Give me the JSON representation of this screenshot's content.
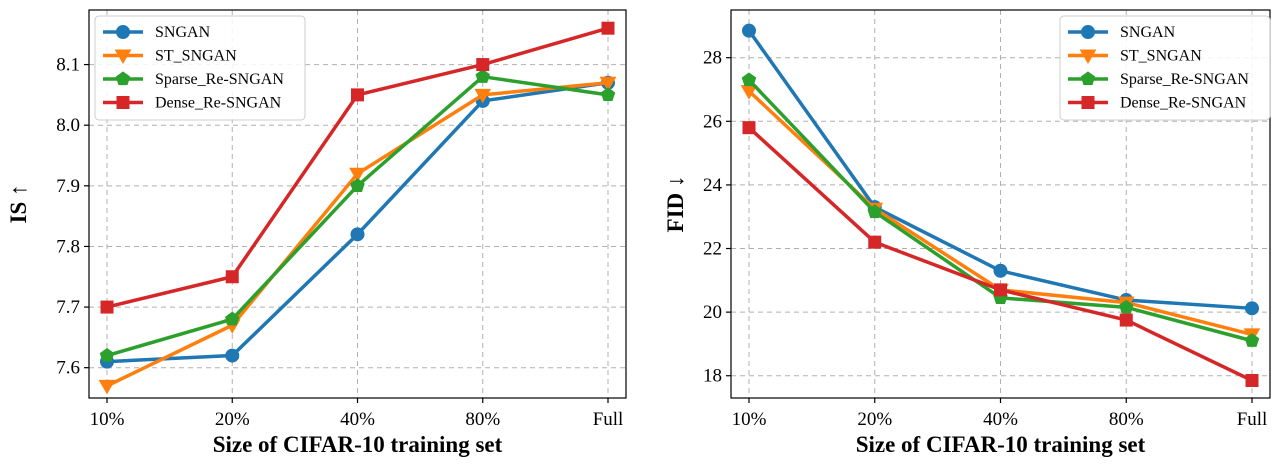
{
  "chart_data": [
    {
      "type": "line",
      "categories": [
        "10%",
        "20%",
        "40%",
        "80%",
        "Full"
      ],
      "xlabel": "Size of CIFAR-10 training set",
      "ylabel": "IS ↑",
      "ylim": [
        7.55,
        8.19
      ],
      "yticks": [
        7.6,
        7.7,
        7.8,
        7.9,
        8.0,
        8.1
      ],
      "ytick_labels": [
        "7.6",
        "7.7",
        "7.8",
        "7.9",
        "8.0",
        "8.1"
      ],
      "grid": true,
      "legend_position": "top-left",
      "series": [
        {
          "name": "SNGAN",
          "color": "#1f77b4",
          "marker": "circle",
          "values": [
            7.61,
            7.62,
            7.82,
            8.04,
            8.07
          ]
        },
        {
          "name": "ST_SNGAN",
          "color": "#ff7f0e",
          "marker": "triangle-down",
          "values": [
            7.57,
            7.67,
            7.92,
            8.05,
            8.07
          ]
        },
        {
          "name": "Sparse_Re-SNGAN",
          "color": "#2ca02c",
          "marker": "pentagon",
          "values": [
            7.62,
            7.68,
            7.9,
            8.08,
            8.05
          ]
        },
        {
          "name": "Dense_Re-SNGAN",
          "color": "#d62728",
          "marker": "square",
          "values": [
            7.7,
            7.75,
            8.05,
            8.1,
            8.16
          ]
        }
      ]
    },
    {
      "type": "line",
      "categories": [
        "10%",
        "20%",
        "40%",
        "80%",
        "Full"
      ],
      "xlabel": "Size of CIFAR-10 training set",
      "ylabel": "FID ↓",
      "ylim": [
        17.3,
        29.5
      ],
      "yticks": [
        18,
        20,
        22,
        24,
        26,
        28
      ],
      "ytick_labels": [
        "18",
        "20",
        "22",
        "24",
        "26",
        "28"
      ],
      "grid": true,
      "legend_position": "top-right",
      "series": [
        {
          "name": "SNGAN",
          "color": "#1f77b4",
          "marker": "circle",
          "values": [
            28.85,
            23.3,
            21.3,
            20.38,
            20.12
          ]
        },
        {
          "name": "ST_SNGAN",
          "color": "#ff7f0e",
          "marker": "triangle-down",
          "values": [
            26.95,
            23.25,
            20.7,
            20.3,
            19.3
          ]
        },
        {
          "name": "Sparse_Re-SNGAN",
          "color": "#2ca02c",
          "marker": "pentagon",
          "values": [
            27.3,
            23.15,
            20.45,
            20.15,
            19.1
          ]
        },
        {
          "name": "Dense_Re-SNGAN",
          "color": "#d62728",
          "marker": "square",
          "values": [
            25.8,
            22.2,
            20.7,
            19.75,
            17.85
          ]
        }
      ]
    }
  ]
}
